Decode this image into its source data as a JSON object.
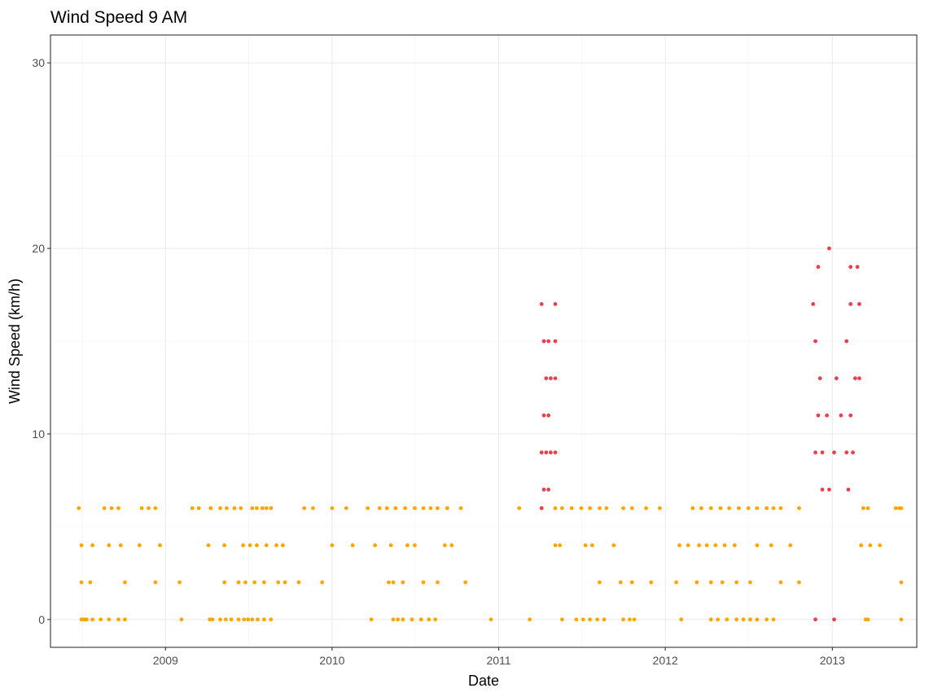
{
  "chart_data": {
    "type": "scatter",
    "title": "Wind Speed 9 AM",
    "xlabel": "Date",
    "ylabel": "Wind Speed (km/h)",
    "x_ticks": [
      "2009",
      "2010",
      "2011",
      "2012",
      "2013"
    ],
    "y_ticks": [
      0,
      10,
      20,
      30
    ],
    "xlim": [
      "2008-04-24",
      "2013-07-05"
    ],
    "ylim": [
      -1.5,
      31.5
    ],
    "grid": true,
    "legend": "none",
    "colors": {
      "normal": "#FFA500",
      "highlight": "#E8414B"
    },
    "series": [
      {
        "color": "#FFA500",
        "points": [
          [
            "2008-07-01",
            0
          ],
          [
            "2008-07-04",
            0
          ],
          [
            "2008-07-08",
            0
          ],
          [
            "2008-07-12",
            0
          ],
          [
            "2008-07-25",
            0
          ],
          [
            "2008-08-12",
            0
          ],
          [
            "2008-08-30",
            0
          ],
          [
            "2008-09-20",
            0
          ],
          [
            "2008-10-04",
            0
          ],
          [
            "2009-02-05",
            0
          ],
          [
            "2009-04-08",
            0
          ],
          [
            "2009-04-14",
            0
          ],
          [
            "2009-05-01",
            0
          ],
          [
            "2009-05-13",
            0
          ],
          [
            "2009-05-25",
            0
          ],
          [
            "2009-06-10",
            0
          ],
          [
            "2009-06-22",
            0
          ],
          [
            "2009-07-01",
            0
          ],
          [
            "2009-07-10",
            0
          ],
          [
            "2009-07-22",
            0
          ],
          [
            "2009-08-05",
            0
          ],
          [
            "2009-08-20",
            0
          ],
          [
            "2010-03-28",
            0
          ],
          [
            "2010-05-15",
            0
          ],
          [
            "2010-05-25",
            0
          ],
          [
            "2010-06-05",
            0
          ],
          [
            "2010-06-25",
            0
          ],
          [
            "2010-07-15",
            0
          ],
          [
            "2010-08-01",
            0
          ],
          [
            "2010-08-15",
            0
          ],
          [
            "2010-12-15",
            0
          ],
          [
            "2011-03-10",
            0
          ],
          [
            "2011-05-20",
            0
          ],
          [
            "2011-06-20",
            0
          ],
          [
            "2011-07-05",
            0
          ],
          [
            "2011-07-20",
            0
          ],
          [
            "2011-08-05",
            0
          ],
          [
            "2011-08-20",
            0
          ],
          [
            "2011-10-01",
            0
          ],
          [
            "2011-10-15",
            0
          ],
          [
            "2011-10-25",
            0
          ],
          [
            "2012-02-05",
            0
          ],
          [
            "2012-04-10",
            0
          ],
          [
            "2012-04-25",
            0
          ],
          [
            "2012-05-15",
            0
          ],
          [
            "2012-06-05",
            0
          ],
          [
            "2012-06-20",
            0
          ],
          [
            "2012-07-05",
            0
          ],
          [
            "2012-07-20",
            0
          ],
          [
            "2012-08-10",
            0
          ],
          [
            "2012-08-25",
            0
          ],
          [
            "2013-03-15",
            0
          ],
          [
            "2013-03-20",
            0
          ],
          [
            "2013-06-01",
            0
          ],
          [
            "2008-07-01",
            2
          ],
          [
            "2008-07-20",
            2
          ],
          [
            "2008-10-04",
            2
          ],
          [
            "2008-12-10",
            2
          ],
          [
            "2009-02-01",
            2
          ],
          [
            "2009-05-10",
            2
          ],
          [
            "2009-06-10",
            2
          ],
          [
            "2009-06-25",
            2
          ],
          [
            "2009-07-15",
            2
          ],
          [
            "2009-08-05",
            2
          ],
          [
            "2009-09-05",
            2
          ],
          [
            "2009-09-20",
            2
          ],
          [
            "2009-10-20",
            2
          ],
          [
            "2009-12-10",
            2
          ],
          [
            "2010-05-05",
            2
          ],
          [
            "2010-05-15",
            2
          ],
          [
            "2010-06-05",
            2
          ],
          [
            "2010-07-20",
            2
          ],
          [
            "2010-08-20",
            2
          ],
          [
            "2010-10-20",
            2
          ],
          [
            "2011-08-10",
            2
          ],
          [
            "2011-09-25",
            2
          ],
          [
            "2011-10-20",
            2
          ],
          [
            "2011-12-01",
            2
          ],
          [
            "2012-01-25",
            2
          ],
          [
            "2012-03-10",
            2
          ],
          [
            "2012-04-10",
            2
          ],
          [
            "2012-05-05",
            2
          ],
          [
            "2012-06-05",
            2
          ],
          [
            "2012-07-05",
            2
          ],
          [
            "2012-09-10",
            2
          ],
          [
            "2012-10-20",
            2
          ],
          [
            "2013-06-01",
            2
          ],
          [
            "2008-07-01",
            4
          ],
          [
            "2008-07-25",
            4
          ],
          [
            "2008-08-30",
            4
          ],
          [
            "2008-09-25",
            4
          ],
          [
            "2008-11-05",
            4
          ],
          [
            "2008-12-20",
            4
          ],
          [
            "2009-04-05",
            4
          ],
          [
            "2009-05-10",
            4
          ],
          [
            "2009-06-20",
            4
          ],
          [
            "2009-07-05",
            4
          ],
          [
            "2009-07-20",
            4
          ],
          [
            "2009-08-10",
            4
          ],
          [
            "2009-09-01",
            4
          ],
          [
            "2009-09-15",
            4
          ],
          [
            "2010-01-01",
            4
          ],
          [
            "2010-02-15",
            4
          ],
          [
            "2010-04-05",
            4
          ],
          [
            "2010-05-10",
            4
          ],
          [
            "2010-06-15",
            4
          ],
          [
            "2010-07-01",
            4
          ],
          [
            "2010-09-05",
            4
          ],
          [
            "2010-09-20",
            4
          ],
          [
            "2011-05-05",
            4
          ],
          [
            "2011-05-15",
            4
          ],
          [
            "2011-07-10",
            4
          ],
          [
            "2011-07-25",
            4
          ],
          [
            "2011-09-10",
            4
          ],
          [
            "2012-02-01",
            4
          ],
          [
            "2012-02-20",
            4
          ],
          [
            "2012-03-15",
            4
          ],
          [
            "2012-04-01",
            4
          ],
          [
            "2012-04-20",
            4
          ],
          [
            "2012-05-10",
            4
          ],
          [
            "2012-06-01",
            4
          ],
          [
            "2012-07-20",
            4
          ],
          [
            "2012-08-20",
            4
          ],
          [
            "2012-10-01",
            4
          ],
          [
            "2013-03-05",
            4
          ],
          [
            "2013-03-25",
            4
          ],
          [
            "2013-04-15",
            4
          ],
          [
            "2008-06-25",
            6
          ],
          [
            "2008-08-20",
            6
          ],
          [
            "2008-09-05",
            6
          ],
          [
            "2008-09-20",
            6
          ],
          [
            "2008-11-10",
            6
          ],
          [
            "2008-11-25",
            6
          ],
          [
            "2008-12-10",
            6
          ],
          [
            "2009-03-01",
            6
          ],
          [
            "2009-03-15",
            6
          ],
          [
            "2009-04-10",
            6
          ],
          [
            "2009-05-01",
            6
          ],
          [
            "2009-05-15",
            6
          ],
          [
            "2009-06-01",
            6
          ],
          [
            "2009-06-15",
            6
          ],
          [
            "2009-07-10",
            6
          ],
          [
            "2009-07-20",
            6
          ],
          [
            "2009-08-01",
            6
          ],
          [
            "2009-08-10",
            6
          ],
          [
            "2009-08-20",
            6
          ],
          [
            "2009-11-01",
            6
          ],
          [
            "2009-11-20",
            6
          ],
          [
            "2010-01-01",
            6
          ],
          [
            "2010-02-01",
            6
          ],
          [
            "2010-03-20",
            6
          ],
          [
            "2010-04-15",
            6
          ],
          [
            "2010-05-01",
            6
          ],
          [
            "2010-05-20",
            6
          ],
          [
            "2010-06-10",
            6
          ],
          [
            "2010-07-01",
            6
          ],
          [
            "2010-07-20",
            6
          ],
          [
            "2010-08-05",
            6
          ],
          [
            "2010-08-20",
            6
          ],
          [
            "2010-09-10",
            6
          ],
          [
            "2010-10-10",
            6
          ],
          [
            "2011-02-15",
            6
          ],
          [
            "2011-04-05",
            6
          ],
          [
            "2011-05-05",
            6
          ],
          [
            "2011-05-20",
            6
          ],
          [
            "2011-06-10",
            6
          ],
          [
            "2011-07-01",
            6
          ],
          [
            "2011-07-20",
            6
          ],
          [
            "2011-08-10",
            6
          ],
          [
            "2011-08-25",
            6
          ],
          [
            "2011-10-01",
            6
          ],
          [
            "2011-10-20",
            6
          ],
          [
            "2011-11-20",
            6
          ],
          [
            "2011-12-20",
            6
          ],
          [
            "2012-03-01",
            6
          ],
          [
            "2012-03-20",
            6
          ],
          [
            "2012-04-10",
            6
          ],
          [
            "2012-05-01",
            6
          ],
          [
            "2012-05-20",
            6
          ],
          [
            "2012-06-10",
            6
          ],
          [
            "2012-07-01",
            6
          ],
          [
            "2012-07-20",
            6
          ],
          [
            "2012-08-10",
            6
          ],
          [
            "2012-08-25",
            6
          ],
          [
            "2012-09-10",
            6
          ],
          [
            "2012-10-20",
            6
          ],
          [
            "2013-03-10",
            6
          ],
          [
            "2013-03-20",
            6
          ],
          [
            "2013-05-20",
            6
          ],
          [
            "2013-05-28",
            6
          ],
          [
            "2013-06-01",
            6
          ]
        ]
      },
      {
        "color": "#E8414B",
        "points": [
          [
            "2011-04-05",
            6
          ],
          [
            "2011-04-10",
            7
          ],
          [
            "2011-04-20",
            7
          ],
          [
            "2011-04-05",
            9
          ],
          [
            "2011-04-15",
            9
          ],
          [
            "2011-04-25",
            9
          ],
          [
            "2011-05-05",
            9
          ],
          [
            "2011-04-10",
            11
          ],
          [
            "2011-04-20",
            11
          ],
          [
            "2011-04-15",
            13
          ],
          [
            "2011-04-25",
            13
          ],
          [
            "2011-05-05",
            13
          ],
          [
            "2011-04-10",
            15
          ],
          [
            "2011-04-20",
            15
          ],
          [
            "2011-05-05",
            15
          ],
          [
            "2011-04-05",
            17
          ],
          [
            "2011-05-05",
            17
          ],
          [
            "2012-11-25",
            0
          ],
          [
            "2013-01-05",
            0
          ],
          [
            "2012-12-10",
            7
          ],
          [
            "2012-12-25",
            7
          ],
          [
            "2013-02-05",
            7
          ],
          [
            "2012-11-25",
            9
          ],
          [
            "2012-12-10",
            9
          ],
          [
            "2013-01-05",
            9
          ],
          [
            "2013-02-01",
            9
          ],
          [
            "2013-02-15",
            9
          ],
          [
            "2012-12-01",
            11
          ],
          [
            "2012-12-20",
            11
          ],
          [
            "2013-01-20",
            11
          ],
          [
            "2013-02-10",
            11
          ],
          [
            "2012-12-05",
            13
          ],
          [
            "2013-01-10",
            13
          ],
          [
            "2013-02-20",
            13
          ],
          [
            "2013-03-01",
            13
          ],
          [
            "2012-11-25",
            15
          ],
          [
            "2013-02-01",
            15
          ],
          [
            "2012-11-20",
            17
          ],
          [
            "2013-02-10",
            17
          ],
          [
            "2013-03-01",
            17
          ],
          [
            "2012-12-01",
            19
          ],
          [
            "2013-02-10",
            19
          ],
          [
            "2013-02-25",
            19
          ],
          [
            "2012-12-25",
            20
          ]
        ]
      }
    ]
  }
}
